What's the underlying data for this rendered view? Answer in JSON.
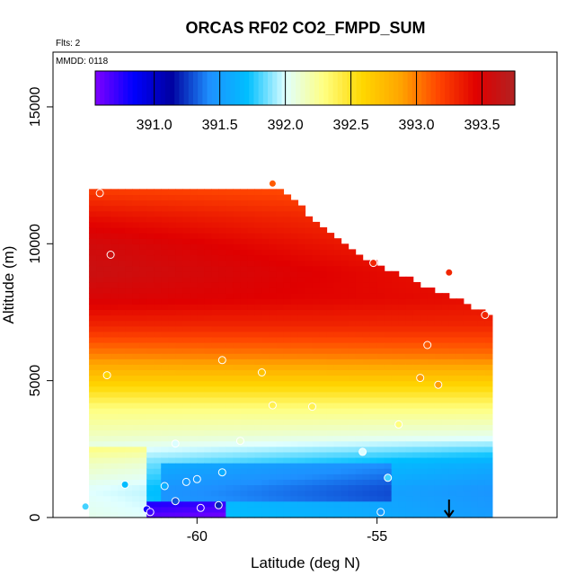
{
  "chart_data": {
    "type": "heatmap",
    "title": "ORCAS RF02 CO2_FMPD_SUM",
    "subtitle_flights": "Flts: 2",
    "subtitle_date": "MMDD: 0118",
    "xlabel": "Latitude (deg N)",
    "ylabel": "Altitude (m)",
    "xlim": [
      -64.0,
      -50.0
    ],
    "ylim": [
      0,
      17000
    ],
    "x_ticks": [
      -60,
      -55
    ],
    "x_tick_labels": [
      "-60",
      "-55"
    ],
    "y_ticks": [
      0,
      5000,
      10000,
      15000
    ],
    "y_tick_labels": [
      "0",
      "5000",
      "10000",
      "15000"
    ],
    "colorbar": {
      "range": [
        390.55,
        393.75
      ],
      "ticks": [
        391.0,
        391.5,
        392.0,
        392.5,
        393.0,
        393.5
      ],
      "tick_labels": [
        "391.0",
        "391.5",
        "392.0",
        "392.5",
        "393.0",
        "393.5"
      ],
      "colors": [
        "#8000ff",
        "#0000ff",
        "#0000a0",
        "#1e90ff",
        "#00bfff",
        "#e0ffff",
        "#ffff80",
        "#ffd700",
        "#ffa500",
        "#ff4500",
        "#e00000",
        "#b22222"
      ]
    },
    "grid": {
      "lat_start": -63.0,
      "lat_end": -51.8,
      "lat_step": 0.2,
      "alt_start": 0,
      "alt_end": 12000,
      "alt_step": 200,
      "envelope_max_alt": [
        [
          -63.0,
          12000
        ],
        [
          -57.6,
          12000
        ],
        [
          -57.0,
          11200
        ],
        [
          -55.6,
          9600
        ],
        [
          -54.2,
          8800
        ],
        [
          -53.2,
          8200
        ],
        [
          -52.0,
          7500
        ],
        [
          -51.8,
          7300
        ]
      ],
      "profile_at_south": [
        [
          0,
          391.8
        ],
        [
          1000,
          391.75
        ],
        [
          2000,
          391.9
        ],
        [
          3000,
          392.15
        ],
        [
          4000,
          392.3
        ],
        [
          5000,
          392.65
        ],
        [
          6000,
          393.0
        ],
        [
          7000,
          393.3
        ],
        [
          8000,
          393.5
        ],
        [
          9000,
          393.6
        ],
        [
          10000,
          393.55
        ],
        [
          11000,
          393.4
        ],
        [
          12000,
          393.2
        ]
      ],
      "profile_at_north": [
        [
          0,
          391.5
        ],
        [
          1000,
          391.45
        ],
        [
          2000,
          391.6
        ],
        [
          3000,
          392.05
        ],
        [
          4000,
          392.3
        ],
        [
          5000,
          392.65
        ],
        [
          6000,
          393.05
        ],
        [
          7000,
          393.3
        ],
        [
          8000,
          393.4
        ],
        [
          9000,
          393.35
        ],
        [
          10000,
          393.25
        ],
        [
          11000,
          393.2
        ],
        [
          12000,
          393.1
        ]
      ]
    },
    "observations": [
      {
        "lat": -63.1,
        "alt": 400,
        "value": 391.8
      },
      {
        "lat": -62.7,
        "alt": 11850,
        "value": 393.2
      },
      {
        "lat": -62.5,
        "alt": 5200,
        "value": 392.6
      },
      {
        "lat": -62.4,
        "alt": 9600,
        "value": 393.6
      },
      {
        "lat": -62.0,
        "alt": 1200,
        "value": 391.7
      },
      {
        "lat": -61.4,
        "alt": 300,
        "value": 390.8
      },
      {
        "lat": -61.3,
        "alt": 200,
        "value": 390.7
      },
      {
        "lat": -60.9,
        "alt": 1150,
        "value": 391.6
      },
      {
        "lat": -60.6,
        "alt": 2700,
        "value": 392.0
      },
      {
        "lat": -60.6,
        "alt": 600,
        "value": 391.3
      },
      {
        "lat": -60.3,
        "alt": 1300,
        "value": 391.5
      },
      {
        "lat": -60.0,
        "alt": 1400,
        "value": 391.5
      },
      {
        "lat": -59.9,
        "alt": 350,
        "value": 390.7
      },
      {
        "lat": -59.4,
        "alt": 450,
        "value": 391.2
      },
      {
        "lat": -59.3,
        "alt": 1650,
        "value": 391.6
      },
      {
        "lat": -59.3,
        "alt": 5750,
        "value": 392.9
      },
      {
        "lat": -58.8,
        "alt": 2800,
        "value": 392.1
      },
      {
        "lat": -58.2,
        "alt": 5300,
        "value": 392.7
      },
      {
        "lat": -57.9,
        "alt": 4100,
        "value": 392.4
      },
      {
        "lat": -57.9,
        "alt": 12200,
        "value": 393.1
      },
      {
        "lat": -56.8,
        "alt": 4050,
        "value": 392.4
      },
      {
        "lat": -55.4,
        "alt": 2400,
        "value": 392.0
      },
      {
        "lat": -55.1,
        "alt": 9300,
        "value": 393.3
      },
      {
        "lat": -54.9,
        "alt": 200,
        "value": 391.5
      },
      {
        "lat": -54.7,
        "alt": 1450,
        "value": 391.8
      },
      {
        "lat": -54.4,
        "alt": 3400,
        "value": 392.3
      },
      {
        "lat": -53.8,
        "alt": 5100,
        "value": 392.9
      },
      {
        "lat": -53.6,
        "alt": 6300,
        "value": 393.1
      },
      {
        "lat": -53.3,
        "alt": 4850,
        "value": 392.9
      },
      {
        "lat": -53.0,
        "alt": 8950,
        "value": 393.3
      },
      {
        "lat": -52.0,
        "alt": 7400,
        "value": 393.3
      }
    ],
    "arrow_marker": {
      "lat": -53.0,
      "alt": 0
    }
  }
}
